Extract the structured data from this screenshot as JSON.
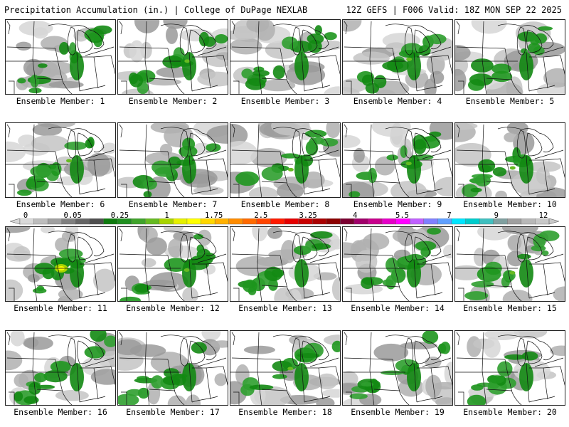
{
  "header": {
    "left": "Precipitation Accumulation (in.) | College of DuPage NEXLAB",
    "right": "12Z GEFS | F006 Valid: 18Z MON SEP 22 2025"
  },
  "members": [
    {
      "label": "Ensemble Member: 1"
    },
    {
      "label": "Ensemble Member: 2"
    },
    {
      "label": "Ensemble Member: 3"
    },
    {
      "label": "Ensemble Member: 4"
    },
    {
      "label": "Ensemble Member: 5"
    },
    {
      "label": "Ensemble Member: 6"
    },
    {
      "label": "Ensemble Member: 7"
    },
    {
      "label": "Ensemble Member: 8"
    },
    {
      "label": "Ensemble Member: 9"
    },
    {
      "label": "Ensemble Member: 10"
    },
    {
      "label": "Ensemble Member: 11"
    },
    {
      "label": "Ensemble Member: 12"
    },
    {
      "label": "Ensemble Member: 13"
    },
    {
      "label": "Ensemble Member: 14"
    },
    {
      "label": "Ensemble Member: 15"
    },
    {
      "label": "Ensemble Member: 16"
    },
    {
      "label": "Ensemble Member: 17"
    },
    {
      "label": "Ensemble Member: 18"
    },
    {
      "label": "Ensemble Member: 19"
    },
    {
      "label": "Ensemble Member: 20"
    }
  ],
  "colorbar": {
    "labels": [
      "0",
      "0.05",
      "0.25",
      "1",
      "1.75",
      "2.5",
      "3.25",
      "4",
      "5.5",
      "7",
      "9",
      "12"
    ],
    "colors": [
      "#d9d9d9",
      "#bdbdbd",
      "#a0a0a0",
      "#808080",
      "#666666",
      "#4e4e4e",
      "#0f7a0f",
      "#1f8f1f",
      "#3fa32a",
      "#66bb22",
      "#a8d400",
      "#e6f000",
      "#ffff00",
      "#ffd700",
      "#ffb000",
      "#ff8c00",
      "#ff6a00",
      "#ff4500",
      "#ff1a00",
      "#e60000",
      "#c80000",
      "#aa0000",
      "#8b0000",
      "#7a0030",
      "#a0006a",
      "#c8008c",
      "#e600c8",
      "#ff00ff",
      "#c060ff",
      "#8080ff",
      "#60a0ff",
      "#00e5ff",
      "#00cccc",
      "#40c0c0",
      "#80a0a0",
      "#a0a0a0",
      "#b8b8b8",
      "#c8c8c8"
    ]
  }
}
